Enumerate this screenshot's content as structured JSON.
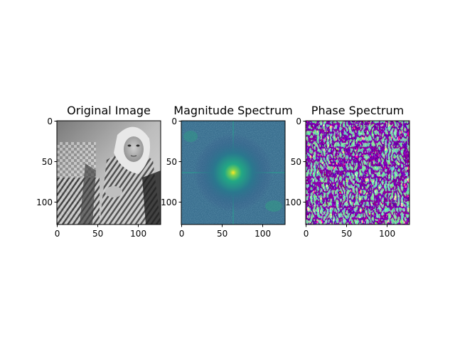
{
  "chart_data": [
    {
      "type": "heatmap",
      "title": "Original Image",
      "content": "grayscale photograph",
      "colormap": "gray",
      "image_size": [
        128,
        128
      ],
      "xlim": [
        -0.5,
        127.5
      ],
      "ylim": [
        127.5,
        -0.5
      ],
      "xticks": [
        0,
        50,
        100
      ],
      "yticks": [
        0,
        50,
        100
      ],
      "xtick_labels": [
        "0",
        "50",
        "100"
      ],
      "ytick_labels": [
        "0",
        "50",
        "100"
      ]
    },
    {
      "type": "heatmap",
      "title": "Magnitude Spectrum",
      "content": "log magnitude of centered 2D FFT",
      "colormap": "viridis",
      "image_size": [
        128,
        128
      ],
      "peak_at": [
        64,
        64
      ],
      "xlim": [
        -0.5,
        127.5
      ],
      "ylim": [
        127.5,
        -0.5
      ],
      "xticks": [
        0,
        50,
        100
      ],
      "yticks": [
        0,
        50,
        100
      ],
      "xtick_labels": [
        "0",
        "50",
        "100"
      ],
      "ytick_labels": [
        "0",
        "50",
        "100"
      ]
    },
    {
      "type": "heatmap",
      "title": "Phase Spectrum",
      "content": "phase angle of 2D FFT",
      "colormap": "viridis",
      "image_size": [
        128,
        128
      ],
      "xlim": [
        -0.5,
        127.5
      ],
      "ylim": [
        127.5,
        -0.5
      ],
      "xticks": [
        0,
        50,
        100
      ],
      "yticks": [
        0,
        50,
        100
      ],
      "xtick_labels": [
        "0",
        "50",
        "100"
      ],
      "ytick_labels": [
        "0",
        "50",
        "100"
      ]
    }
  ],
  "colors": {
    "viridis_dark": "#440154",
    "viridis_mid": "#21918c",
    "viridis_bright": "#fde725",
    "magnitude_background": "#3a6f8f",
    "axis": "#000000"
  },
  "icons": {
    "original_image": "barbara-photo-icon"
  }
}
